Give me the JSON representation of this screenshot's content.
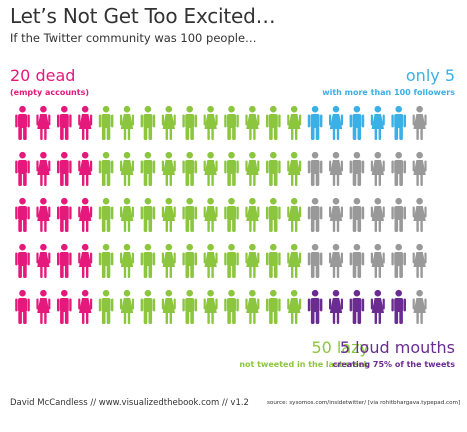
{
  "header": {
    "title": "Let’s Not Get Too Excited…",
    "subtitle": "If the Twitter community was 100 people…"
  },
  "chart_data": {
    "type": "table",
    "total": 100,
    "rows": 5,
    "cols": 20,
    "groups": [
      {
        "key": "dead",
        "big": "20 dead",
        "small": "(empty accounts)",
        "count": 20,
        "color": "#e5197b"
      },
      {
        "key": "lazy",
        "big": "50 lazy",
        "small": "not tweeted in the last week",
        "count": 50,
        "color": "#8cc63f"
      },
      {
        "key": "followers",
        "big": "only 5",
        "small": "with more than 100 followers",
        "count": 5,
        "color": "#3bb0e6"
      },
      {
        "key": "loud",
        "big": "5 loud mouths",
        "small": "creating 75% of the tweets",
        "count": 5,
        "color": "#6b2c91"
      },
      {
        "key": "other",
        "count": 20,
        "color": "#999999"
      }
    ]
  },
  "footer": {
    "credit": "David McCandless // www.visualizedthebook.com // v1.2",
    "source": "source: sysomos.com/insidetwitter/ [via rohitbhargava.typepad.com]"
  }
}
